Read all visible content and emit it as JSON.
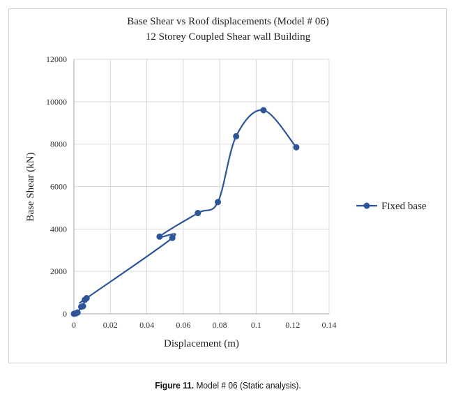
{
  "chart_data": {
    "type": "scatter",
    "title": "Base Shear vs Roof displacements (Model # 06)",
    "subtitle": "12 Storey Coupled Shear wall Building",
    "xlabel": "Displacement (m)",
    "ylabel": "Base Shear (kN)",
    "xlim": [
      0,
      0.14
    ],
    "ylim": [
      0,
      12000
    ],
    "x_ticks": [
      "0",
      "0.02",
      "0.04",
      "0.06",
      "0.08",
      "0.1",
      "0.12",
      "0.14"
    ],
    "y_ticks": [
      "0",
      "2000",
      "4000",
      "6000",
      "8000",
      "10000",
      "12000"
    ],
    "grid": true,
    "legend_position": "right",
    "smooth": true,
    "series": [
      {
        "name": "Fixed base",
        "color": "#2e5597",
        "x": [
          0.0,
          0.001,
          0.002,
          0.004,
          0.005,
          0.006,
          0.007,
          0.054,
          0.047,
          0.068,
          0.079,
          0.089,
          0.104,
          0.122
        ],
        "y": [
          0,
          20,
          60,
          330,
          360,
          660,
          740,
          3580,
          3640,
          4750,
          5270,
          8370,
          9600,
          7850
        ]
      }
    ]
  },
  "caption": {
    "label": "Figure 11.",
    "text": " Model # 06 (Static analysis)."
  }
}
